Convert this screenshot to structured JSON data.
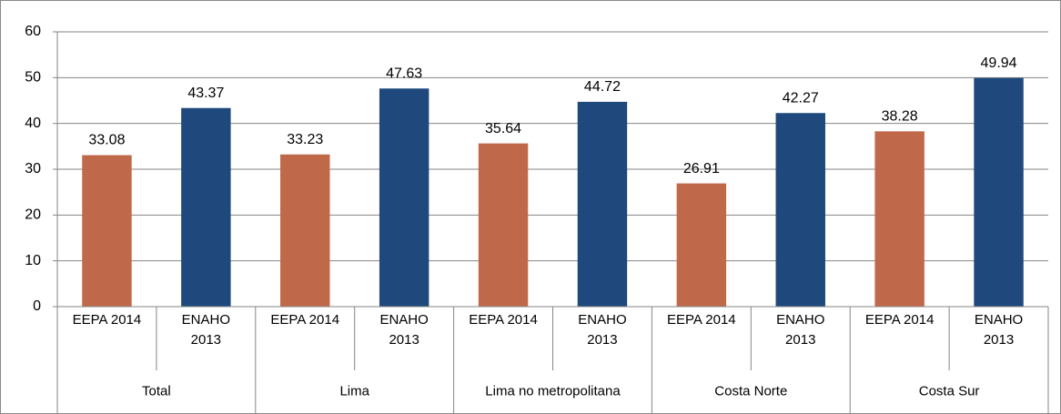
{
  "chart_data": {
    "type": "bar",
    "categories": [
      "Total",
      "Lima",
      "Lima no metropolitana",
      "Costa Norte",
      "Costa Sur"
    ],
    "series": [
      {
        "name": "EEPA 2014",
        "color": "#c0694a",
        "values": [
          33.08,
          33.23,
          35.64,
          26.91,
          38.28
        ]
      },
      {
        "name": "ENAHO 2013",
        "color": "#1f497d",
        "values": [
          43.37,
          47.63,
          44.72,
          42.27,
          49.94
        ]
      }
    ],
    "ylim": [
      0,
      60
    ],
    "yticks": [
      0,
      10,
      20,
      30,
      40,
      50,
      60
    ],
    "grid": true
  }
}
